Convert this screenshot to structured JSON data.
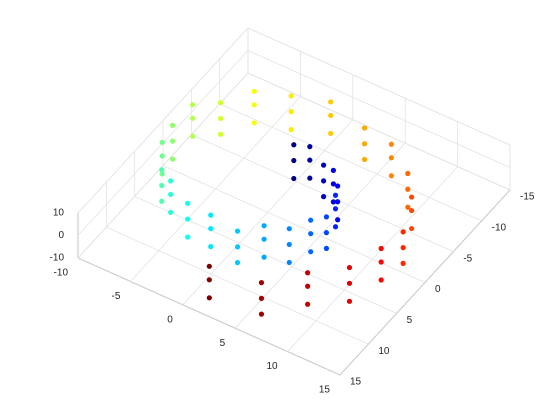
{
  "chart_data": {
    "type": "scatter3",
    "xlim": [
      -10,
      15
    ],
    "ylim": [
      -15,
      15
    ],
    "zlim": [
      -10,
      10
    ],
    "xticks": [
      -10,
      -5,
      0,
      5,
      10,
      15
    ],
    "yticks": [
      -15,
      -10,
      -5,
      0,
      5,
      10,
      15
    ],
    "zticks": [
      -10,
      0,
      10
    ],
    "grid": true,
    "colormap": "jet",
    "series": [
      {
        "x": [
          -0.06,
          -0.06,
          -0.06,
          1.42,
          1.42,
          1.42,
          2.94,
          2.94,
          2.94,
          4.35,
          4.35,
          4.35,
          5.47,
          5.47,
          5.47,
          6.18,
          6.18,
          6.18,
          6.35,
          6.35,
          6.35,
          5.91,
          5.91,
          5.91,
          4.85,
          4.85,
          4.85,
          3.24,
          3.24,
          3.24,
          1.22,
          1.22,
          1.22,
          -1.17,
          -1.17,
          -1.17,
          -3.6,
          -3.6,
          -3.6,
          -5.87,
          -5.87,
          -5.87,
          -7.72,
          -7.72,
          -7.72,
          -8.97,
          -8.97,
          -8.97,
          -9.47,
          -9.47,
          -9.47,
          -9.11,
          -9.11,
          -9.11,
          -7.91,
          -7.91,
          -7.91,
          -5.92,
          -5.92,
          -5.92,
          -3.28,
          -3.28,
          -3.28,
          0.05,
          0.05,
          0.05,
          3.4,
          3.4,
          3.4,
          6.65,
          6.65,
          6.65,
          9.44,
          9.44,
          9.44,
          11.44,
          11.44,
          11.44,
          12.47,
          12.47,
          12.47,
          12.44,
          12.44,
          12.44,
          11.34,
          11.34,
          11.34,
          9.11,
          9.11,
          9.11,
          6.04,
          6.04,
          6.04,
          1.92,
          1.92,
          1.92
        ],
        "y": [
          -4.7,
          -4.7,
          -4.7,
          -4.79,
          -4.79,
          -4.79,
          -4.41,
          -4.41,
          -4.41,
          -3.53,
          -3.53,
          -3.53,
          -2.21,
          -2.21,
          -2.21,
          -0.52,
          -0.52,
          -0.52,
          1.4,
          1.4,
          1.4,
          3.36,
          3.36,
          3.36,
          5.18,
          5.18,
          5.18,
          6.65,
          6.65,
          6.65,
          7.6,
          7.6,
          7.6,
          7.91,
          7.91,
          7.91,
          7.48,
          7.48,
          7.48,
          6.29,
          6.29,
          6.29,
          4.43,
          4.43,
          4.43,
          2.05,
          2.05,
          2.05,
          -0.71,
          -0.71,
          -0.71,
          -3.59,
          -3.59,
          -3.59,
          -6.29,
          -6.29,
          -6.29,
          -8.55,
          -8.55,
          -8.55,
          -10.19,
          -10.19,
          -10.19,
          -11.0,
          -11.0,
          -11.0,
          -10.78,
          -10.78,
          -10.78,
          -9.51,
          -9.51,
          -9.51,
          -7.25,
          -7.25,
          -7.25,
          -4.22,
          -4.22,
          -4.22,
          -0.82,
          -0.82,
          -0.82,
          3.0,
          3.0,
          3.0,
          6.56,
          6.56,
          6.56,
          9.82,
          9.82,
          9.82,
          12.29,
          12.29,
          12.29,
          13.87,
          13.87,
          13.87
        ],
        "z": [
          -8,
          0,
          7,
          -5,
          3,
          9,
          -9,
          -2,
          5,
          -6,
          2,
          8,
          -8,
          0,
          7,
          -5,
          3,
          9,
          -9,
          -2,
          5,
          -6,
          2,
          8,
          -8,
          0,
          7,
          -5,
          3,
          9,
          -9,
          -2,
          5,
          -6,
          2,
          8,
          -8,
          0,
          7,
          -5,
          3,
          9,
          -9,
          -2,
          5,
          -6,
          2,
          8,
          -8,
          0,
          7,
          -5,
          3,
          9,
          -9,
          -2,
          5,
          -6,
          2,
          8,
          -8,
          0,
          7,
          -5,
          3,
          9,
          -9,
          -2,
          5,
          -6,
          2,
          8,
          -8,
          0,
          7,
          -5,
          3,
          9,
          -9,
          -2,
          5,
          -6,
          2,
          8,
          -8,
          0,
          7,
          -5,
          3,
          9,
          -9,
          -2,
          5,
          -6,
          2,
          8
        ],
        "color_values": [
          4.7,
          4.7,
          4.7,
          5.0,
          5.0,
          5.0,
          5.3,
          5.3,
          5.3,
          5.6,
          5.6,
          5.6,
          5.9,
          5.9,
          5.9,
          6.2,
          6.2,
          6.2,
          6.5,
          6.5,
          6.5,
          6.8,
          6.8,
          6.8,
          7.1,
          7.1,
          7.1,
          7.4,
          7.4,
          7.4,
          7.7,
          7.7,
          7.7,
          8.0,
          8.0,
          8.0,
          8.3,
          8.3,
          8.3,
          8.6,
          8.6,
          8.6,
          8.9,
          8.9,
          8.9,
          9.2,
          9.2,
          9.2,
          9.5,
          9.5,
          9.5,
          9.8,
          9.8,
          9.8,
          10.1,
          10.1,
          10.1,
          10.4,
          10.4,
          10.4,
          10.7,
          10.7,
          10.7,
          11.0,
          11.0,
          11.0,
          11.3,
          11.3,
          11.3,
          11.6,
          11.6,
          11.6,
          11.9,
          11.9,
          11.9,
          12.2,
          12.2,
          12.2,
          12.5,
          12.5,
          12.5,
          12.8,
          12.8,
          12.8,
          13.1,
          13.1,
          13.1,
          13.4,
          13.4,
          13.4,
          13.7,
          13.7,
          13.7,
          14.0,
          14.0,
          14.0
        ]
      }
    ]
  }
}
